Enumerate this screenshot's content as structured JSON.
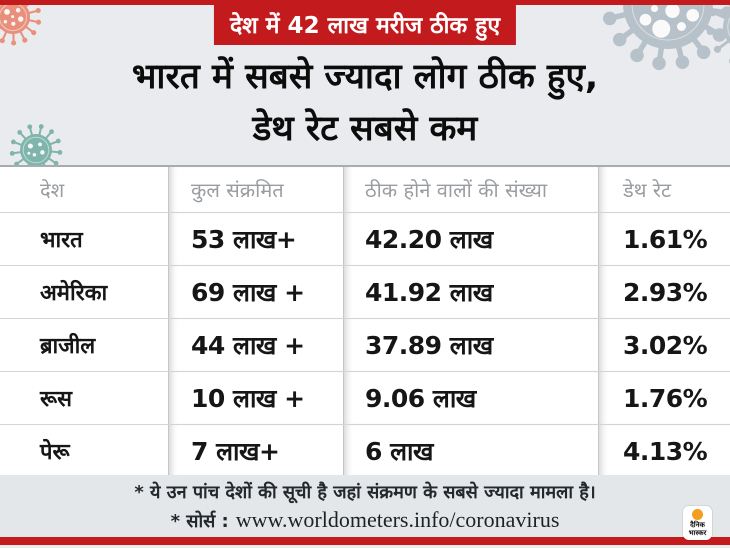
{
  "chart_data": {
    "type": "table",
    "kicker": "देश में 42 लाख मरीज ठीक हुए",
    "title": "भारत में सबसे ज्यादा लोग ठीक हुए, डेथ रेट सबसे कम",
    "title_line1": "भारत में सबसे ज्यादा लोग ठीक हुए,",
    "title_line2": "डेथ रेट सबसे कम",
    "columns": [
      "देश",
      "कुल संक्रमित",
      "ठीक होने वालों की संख्या",
      "डेथ रेट"
    ],
    "rows": [
      {
        "country": "भारत",
        "infected": "53 लाख+",
        "recovered": "42.20 लाख",
        "death_rate": "1.61%"
      },
      {
        "country": "अमेरिका",
        "infected": "69 लाख +",
        "recovered": "41.92 लाख",
        "death_rate": "2.93%"
      },
      {
        "country": "ब्राजील",
        "infected": "44 लाख +",
        "recovered": "37.89 लाख",
        "death_rate": "3.02%"
      },
      {
        "country": "रूस",
        "infected": "10 लाख +",
        "recovered": "9.06 लाख",
        "death_rate": "1.76%"
      },
      {
        "country": "पेरू",
        "infected": "7 लाख+",
        "recovered": "6 लाख",
        "death_rate": "4.13%"
      }
    ],
    "note": "* ये उन पांच देशों की सूची है जहां संक्रमण के सबसे ज्यादा मामला है।",
    "source_label": "* सोर्स :",
    "source_url": "www.worldometers.info/coronavirus",
    "legend_position": "none",
    "grid": "table-lines"
  },
  "logo": {
    "line1": "दैनिक",
    "line2": "भास्कर"
  },
  "colors": {
    "accent_red": "#c31a1e",
    "page_bg": "#e9ebee",
    "footer_bg": "#e4e7ea",
    "virus_salmon": "#e9907c",
    "virus_gray": "#b7c1c9",
    "virus_teal": "#7fb5ab",
    "logo_orange": "#f59d1e",
    "header_text_gray": "#999da1"
  }
}
